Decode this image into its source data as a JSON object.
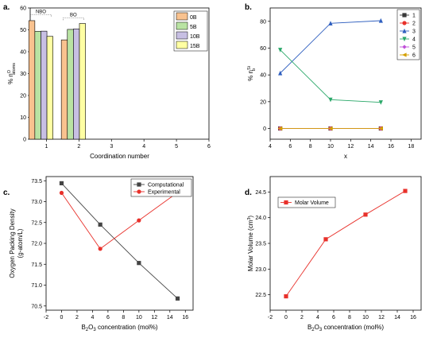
{
  "chart_data": [
    {
      "panel": "a.",
      "type": "bar",
      "xlabel": "Coordination number",
      "ylabel": "% n",
      "ylabel_sup": "O",
      "ylabel_sub": "atoms",
      "xlim": [
        0.5,
        6
      ],
      "xticks": [
        1,
        2,
        3,
        4,
        5,
        6
      ],
      "ylim": [
        0,
        60
      ],
      "yticks": [
        0,
        10,
        20,
        30,
        40,
        50,
        60
      ],
      "categories": [
        1,
        2
      ],
      "series": [
        {
          "name": "0B",
          "color": "#f9c28f",
          "values": [
            54.2,
            45.4
          ]
        },
        {
          "name": "5B",
          "color": "#b9e3a3",
          "values": [
            49.3,
            50.2
          ]
        },
        {
          "name": "10B",
          "color": "#c7bfe3",
          "values": [
            49.4,
            50.4
          ]
        },
        {
          "name": "15B",
          "color": "#ffffa3",
          "values": [
            47.0,
            52.9
          ]
        }
      ],
      "annotations": [
        {
          "text": "NBO",
          "x": 1
        },
        {
          "text": "BO",
          "x": 2
        }
      ],
      "legend": "top-right"
    },
    {
      "panel": "b.",
      "type": "line",
      "xlabel": "x",
      "ylabel": "% n",
      "ylabel_sup": "Si",
      "ylabel_sub": "b",
      "xlim": [
        4,
        19
      ],
      "xticks": [
        4,
        6,
        8,
        10,
        12,
        14,
        16,
        18
      ],
      "ylim": [
        -8,
        90
      ],
      "yticks": [
        0,
        20,
        40,
        60,
        80
      ],
      "x": [
        5,
        10,
        15
      ],
      "series": [
        {
          "name": "1",
          "color": "#3a3a3a",
          "marker": "square",
          "values": [
            0,
            0,
            0
          ]
        },
        {
          "name": "2",
          "color": "#e8312b",
          "marker": "circle",
          "values": [
            0,
            0,
            0
          ]
        },
        {
          "name": "3",
          "color": "#2f5fbf",
          "marker": "triangle-up",
          "values": [
            41.3,
            78.5,
            80.5
          ]
        },
        {
          "name": "4",
          "color": "#2ba86a",
          "marker": "triangle-down",
          "values": [
            58.7,
            21.5,
            19.5
          ]
        },
        {
          "name": "5",
          "color": "#c050d8",
          "marker": "diamond",
          "values": [
            0,
            0,
            0
          ]
        },
        {
          "name": "6",
          "color": "#d4a000",
          "marker": "triangle-left",
          "values": [
            0,
            0,
            0
          ]
        }
      ],
      "legend": "top-right"
    },
    {
      "panel": "c.",
      "type": "line",
      "xlabel": "B",
      "xlabel_sub": "2",
      "xlabel_rest": "O",
      "xlabel_sub2": "3",
      "xlabel_tail": " concentration (mol%)",
      "ylabel": "Oxygen Packing Density",
      "ylabel2": "(g-atom/L)",
      "xlim": [
        -2,
        17
      ],
      "xticks": [
        -2,
        0,
        2,
        4,
        6,
        8,
        10,
        12,
        14,
        16
      ],
      "ylim": [
        70.4,
        73.6
      ],
      "yticks": [
        70.5,
        71.0,
        71.5,
        72.0,
        72.5,
        73.0,
        73.5
      ],
      "yticklabels": [
        "70.5",
        "71.0",
        "71.5",
        "72.0",
        "72.5",
        "73.0",
        "73.5"
      ],
      "x": [
        0,
        5,
        10,
        15
      ],
      "series": [
        {
          "name": "Computational",
          "color": "#444444",
          "marker": "square",
          "values": [
            73.44,
            72.45,
            71.53,
            70.68
          ]
        },
        {
          "name": "Experimental",
          "color": "#e8312b",
          "marker": "circle",
          "values": [
            73.21,
            71.87,
            72.55,
            73.22
          ]
        }
      ],
      "legend": "top-right"
    },
    {
      "panel": "d.",
      "type": "line",
      "xlabel": "B",
      "xlabel_sub": "2",
      "xlabel_rest": "O",
      "xlabel_sub2": "3",
      "xlabel_tail": " concentration (mol%)",
      "ylabel": "Molar Volume (cm",
      "ylabel_sup": "3",
      "ylabel_tail": ")",
      "xlim": [
        -2,
        17
      ],
      "xticks": [
        -2,
        0,
        2,
        4,
        6,
        8,
        10,
        12,
        14,
        16
      ],
      "ylim": [
        22.2,
        24.8
      ],
      "yticks": [
        22.5,
        23.0,
        23.5,
        24.0,
        24.5
      ],
      "yticklabels": [
        "22.5",
        "23.0",
        "23.5",
        "24.0",
        "24.5"
      ],
      "x": [
        0,
        5,
        10,
        15
      ],
      "series": [
        {
          "name": "Molar Volume",
          "color": "#e8312b",
          "marker": "square",
          "values": [
            22.47,
            23.58,
            24.06,
            24.52
          ]
        }
      ],
      "legend": "top-left"
    }
  ]
}
